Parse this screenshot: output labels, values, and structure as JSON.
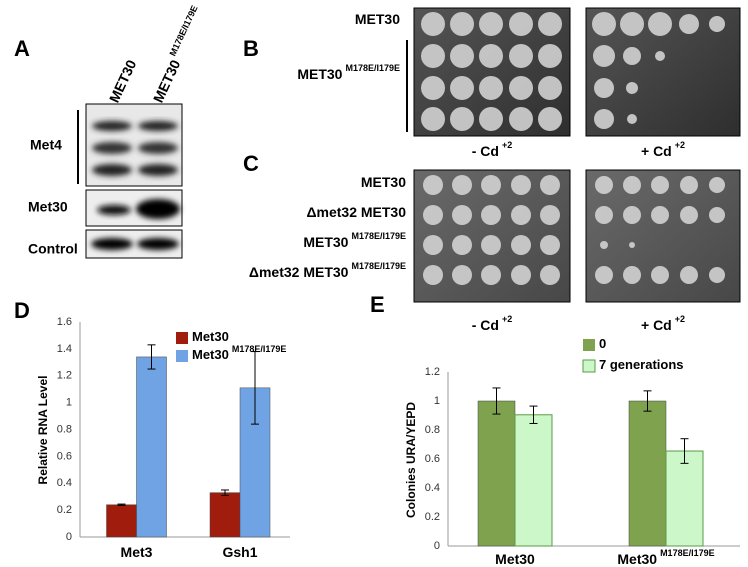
{
  "panel_labels": [
    "A",
    "B",
    "C",
    "D",
    "E"
  ],
  "panel_a": {
    "lanes": [
      {
        "text": "MET30"
      },
      {
        "text": "MET30",
        "sup": "M178E/I179E"
      }
    ],
    "rows": [
      "Met4",
      "Met30",
      "Control"
    ]
  },
  "panel_b": {
    "strains": [
      {
        "text": "MET30"
      },
      {
        "text": "MET30",
        "sup": "M178E/I179E"
      }
    ],
    "conditions": [
      {
        "text": "- Cd",
        "sup": "+2"
      },
      {
        "text": "+ Cd",
        "sup": "+2"
      }
    ]
  },
  "panel_c": {
    "strains": [
      {
        "text": "MET30"
      },
      {
        "text": "Δmet32 MET30"
      },
      {
        "text": "MET30",
        "sup": "M178E/I179E"
      },
      {
        "text": "Δmet32 MET30",
        "sup": "M178E/I179E"
      }
    ],
    "conditions": [
      {
        "text": "- Cd",
        "sup": "+2"
      },
      {
        "text": "+ Cd",
        "sup": "+2"
      }
    ]
  },
  "chart_data": [
    {
      "type": "bar",
      "categories": [
        "Met3",
        "Gsh1"
      ],
      "ylabel": "Relative RNA Level",
      "ylim": [
        0,
        1.6
      ],
      "yticks": [
        0,
        0.2,
        0.4,
        0.6,
        0.8,
        1,
        1.2,
        1.4,
        1.6
      ],
      "grid": false,
      "series": [
        {
          "name": "Met30",
          "color": "#a01d0d",
          "values": [
            0.24,
            0.33
          ],
          "errors": [
            0.005,
            0.02
          ]
        },
        {
          "name": "Met30",
          "name_sup": "M178E/I179E",
          "color": "#6fa3e4",
          "values": [
            1.34,
            1.11
          ],
          "errors": [
            0.09,
            0.27
          ]
        }
      ]
    },
    {
      "type": "bar",
      "categories": [
        "Met30",
        "Met30"
      ],
      "category_sups": [
        null,
        "M178E/I179E"
      ],
      "ylabel": "Colonies URA/YEPD",
      "ylim": [
        0,
        1.2
      ],
      "yticks": [
        0,
        0.2,
        0.4,
        0.6,
        0.8,
        1,
        1.2
      ],
      "grid": false,
      "series": [
        {
          "name": "0",
          "color": "#7ea24e",
          "values": [
            1.0,
            1.0
          ],
          "errors": [
            0.09,
            0.07
          ]
        },
        {
          "name": "7 generations",
          "color": "#ccf7c8",
          "edgecolor": "#5e9a48",
          "values": [
            0.905,
            0.655
          ],
          "errors": [
            0.06,
            0.085
          ]
        }
      ]
    }
  ]
}
